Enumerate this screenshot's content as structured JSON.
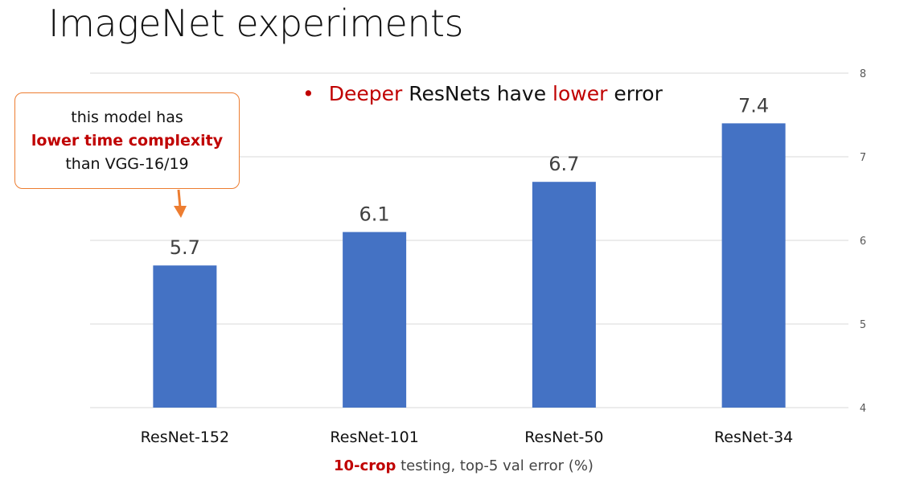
{
  "slide": {
    "title": "ImageNet experiments",
    "bullet": {
      "part1": "Deeper",
      "part2": " ResNets have ",
      "part3": "lower",
      "part4": " error"
    },
    "callout": {
      "line1": "this model has",
      "line2": "lower time complexity",
      "line3": "than VGG-16/19"
    }
  },
  "colors": {
    "bar": "#4472c4",
    "accent_red": "#c00000",
    "callout_orange": "#ed7d31",
    "grid": "#d9d9d9"
  },
  "chart_data": {
    "type": "bar",
    "categories": [
      "ResNet-152",
      "ResNet-101",
      "ResNet-50",
      "ResNet-34"
    ],
    "values": [
      5.7,
      6.1,
      6.7,
      7.4
    ],
    "data_labels": [
      "5.7",
      "6.1",
      "6.7",
      "7.4"
    ],
    "xlabel": {
      "highlight": "10-crop",
      "rest": " testing, top-5 val error (%)"
    },
    "ylim": [
      4,
      8
    ],
    "yticks": [
      "4",
      "5",
      "6",
      "7",
      "8"
    ],
    "y_axis_side": "right",
    "grid": true
  }
}
